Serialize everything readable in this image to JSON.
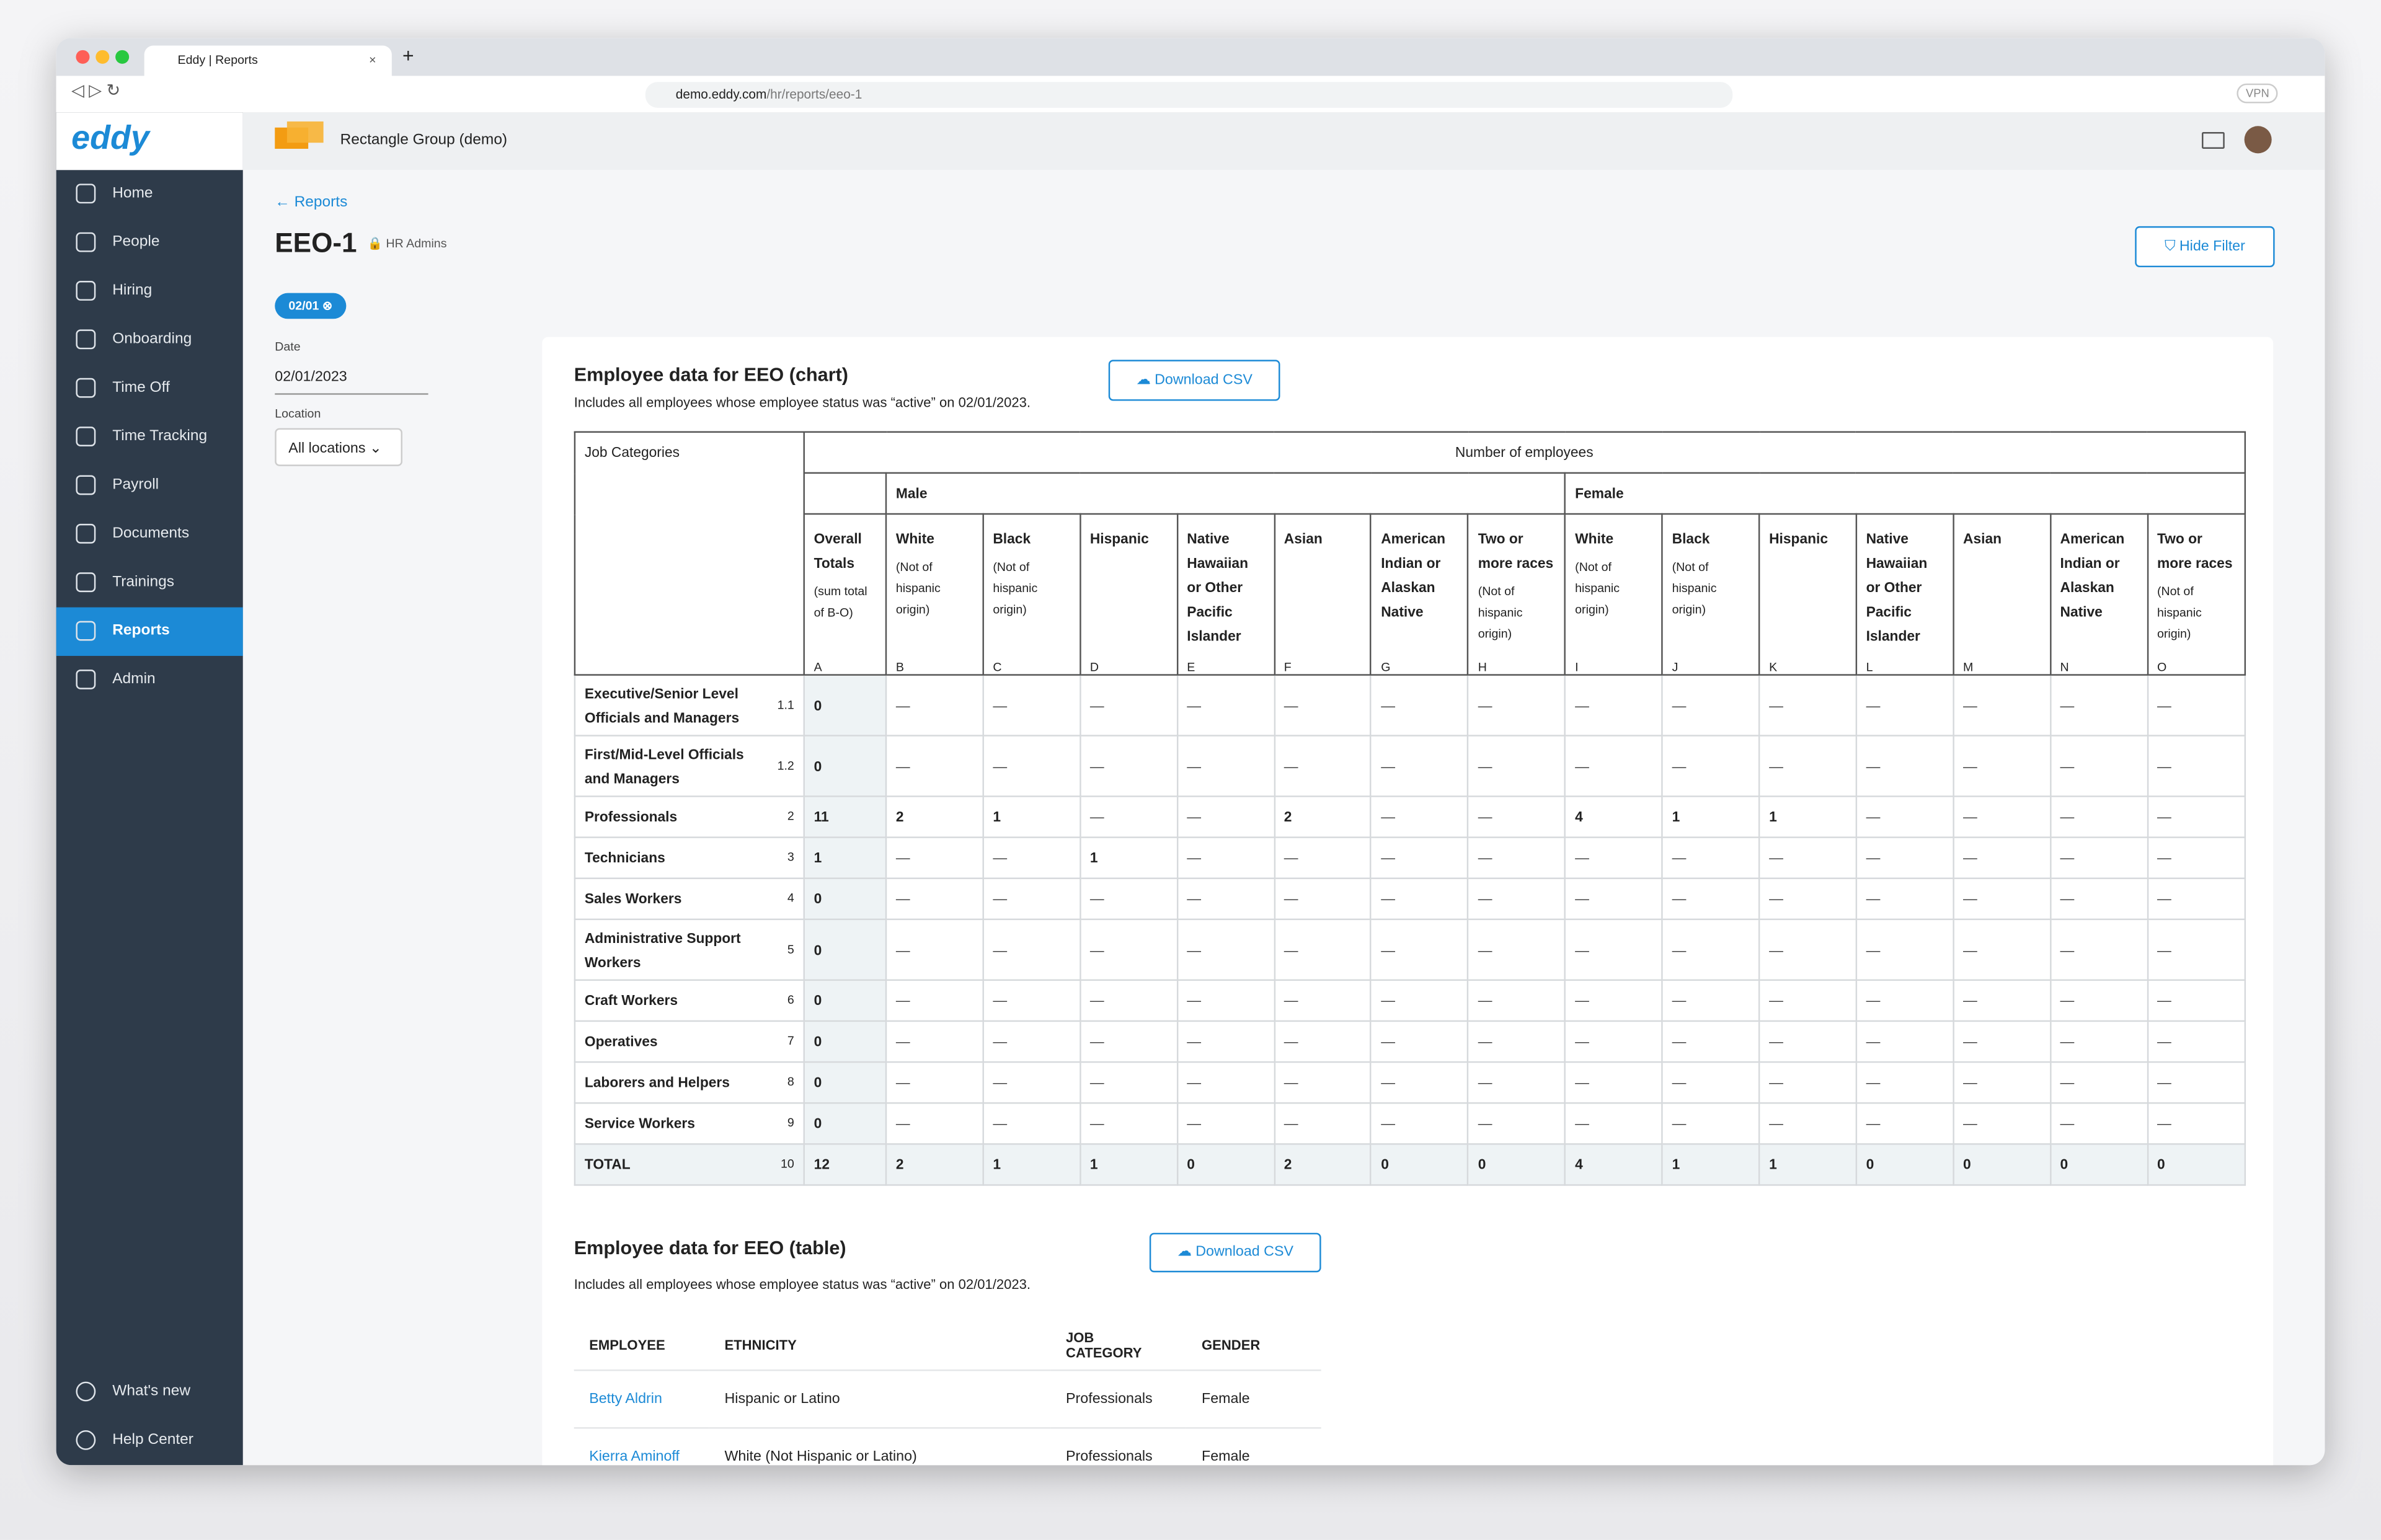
{
  "browser": {
    "tab_title": "Eddy | Reports",
    "url_host": "demo.eddy.com",
    "url_path": "/hr/reports/eeo-1",
    "vpn": "VPN"
  },
  "sidebar": {
    "logo": "eddy",
    "items": [
      "Home",
      "People",
      "Hiring",
      "Onboarding",
      "Time Off",
      "Time Tracking",
      "Payroll",
      "Documents",
      "Trainings",
      "Reports",
      "Admin"
    ],
    "active": 9,
    "footer": [
      "What's new",
      "Help Center"
    ]
  },
  "header": {
    "company": "Rectangle Group (demo)"
  },
  "page": {
    "back": "Reports",
    "title": "EEO-1",
    "access": "HR Admins",
    "hide_filter": "Hide Filter",
    "filter_chip": "02/01",
    "date_label": "Date",
    "date_value": "02/01/2023",
    "location_label": "Location",
    "location_value": "All locations"
  },
  "chart_section": {
    "title": "Employee data for EEO (chart)",
    "download": "Download CSV",
    "note": "Includes all employees whose employee status was “active” on 02/01/2023."
  },
  "eeo_table": {
    "job_categories_header": "Job Categories",
    "number_header": "Number of employees",
    "male": "Male",
    "female": "Female",
    "overall": {
      "name": "Overall Totals",
      "note": "(sum total of B-O)",
      "letter": "A"
    },
    "columns": [
      {
        "name": "White",
        "note": "(Not of hispanic origin)",
        "letter": "B"
      },
      {
        "name": "Black",
        "note": "(Not of hispanic origin)",
        "letter": "C"
      },
      {
        "name": "Hispanic",
        "letter": "D"
      },
      {
        "name": "Native Hawaiian or Other Pacific Islander",
        "letter": "E"
      },
      {
        "name": "Asian",
        "letter": "F"
      },
      {
        "name": "American Indian or Alaskan Native",
        "letter": "G"
      },
      {
        "name": "Two or more races",
        "note": "(Not of hispanic origin)",
        "letter": "H"
      },
      {
        "name": "White",
        "note": "(Not of hispanic origin)",
        "letter": "I"
      },
      {
        "name": "Black",
        "note": "(Not of hispanic origin)",
        "letter": "J"
      },
      {
        "name": "Hispanic",
        "letter": "K"
      },
      {
        "name": "Native Hawaiian or Other Pacific Islander",
        "letter": "L"
      },
      {
        "name": "Asian",
        "letter": "M"
      },
      {
        "name": "American Indian or Alaskan Native",
        "letter": "N"
      },
      {
        "name": "Two or more races",
        "note": "(Not of hispanic origin)",
        "letter": "O"
      }
    ],
    "rows": [
      {
        "name": "Executive/Senior Level Officials and Managers",
        "code": "1.1",
        "values": [
          0,
          "—",
          "—",
          "—",
          "—",
          "—",
          "—",
          "—",
          "—",
          "—",
          "—",
          "—",
          "—",
          "—",
          "—"
        ]
      },
      {
        "name": "First/Mid-Level Officials and Managers",
        "code": "1.2",
        "values": [
          0,
          "—",
          "—",
          "—",
          "—",
          "—",
          "—",
          "—",
          "—",
          "—",
          "—",
          "—",
          "—",
          "—",
          "—"
        ]
      },
      {
        "name": "Professionals",
        "code": "2",
        "values": [
          11,
          2,
          1,
          "—",
          "—",
          2,
          "—",
          "—",
          4,
          1,
          1,
          "—",
          "—",
          "—",
          "—"
        ]
      },
      {
        "name": "Technicians",
        "code": "3",
        "values": [
          1,
          "—",
          "—",
          1,
          "—",
          "—",
          "—",
          "—",
          "—",
          "—",
          "—",
          "—",
          "—",
          "—",
          "—"
        ]
      },
      {
        "name": "Sales Workers",
        "code": "4",
        "values": [
          0,
          "—",
          "—",
          "—",
          "—",
          "—",
          "—",
          "—",
          "—",
          "—",
          "—",
          "—",
          "—",
          "—",
          "—"
        ]
      },
      {
        "name": "Administrative Support Workers",
        "code": "5",
        "values": [
          0,
          "—",
          "—",
          "—",
          "—",
          "—",
          "—",
          "—",
          "—",
          "—",
          "—",
          "—",
          "—",
          "—",
          "—"
        ]
      },
      {
        "name": "Craft Workers",
        "code": "6",
        "values": [
          0,
          "—",
          "—",
          "—",
          "—",
          "—",
          "—",
          "—",
          "—",
          "—",
          "—",
          "—",
          "—",
          "—",
          "—"
        ]
      },
      {
        "name": "Operatives",
        "code": "7",
        "values": [
          0,
          "—",
          "—",
          "—",
          "—",
          "—",
          "—",
          "—",
          "—",
          "—",
          "—",
          "—",
          "—",
          "—",
          "—"
        ]
      },
      {
        "name": "Laborers and Helpers",
        "code": "8",
        "values": [
          0,
          "—",
          "—",
          "—",
          "—",
          "—",
          "—",
          "—",
          "—",
          "—",
          "—",
          "—",
          "—",
          "—",
          "—"
        ]
      },
      {
        "name": "Service Workers",
        "code": "9",
        "values": [
          0,
          "—",
          "—",
          "—",
          "—",
          "—",
          "—",
          "—",
          "—",
          "—",
          "—",
          "—",
          "—",
          "—",
          "—"
        ]
      },
      {
        "name": "TOTAL",
        "code": "10",
        "values": [
          12,
          2,
          1,
          1,
          0,
          2,
          0,
          0,
          4,
          1,
          1,
          0,
          0,
          0,
          0
        ]
      }
    ]
  },
  "table_section": {
    "title": "Employee data for EEO (table)",
    "download": "Download CSV",
    "note": "Includes all employees whose employee status was “active” on 02/01/2023.",
    "headers": [
      "EMPLOYEE",
      "ETHNICITY",
      "JOB CATEGORY",
      "GENDER"
    ],
    "rows": [
      [
        "Betty Aldrin",
        "Hispanic or Latino",
        "Professionals",
        "Female"
      ],
      [
        "Kierra Aminoff",
        "White (Not Hispanic or Latino)",
        "Professionals",
        "Female"
      ]
    ]
  }
}
